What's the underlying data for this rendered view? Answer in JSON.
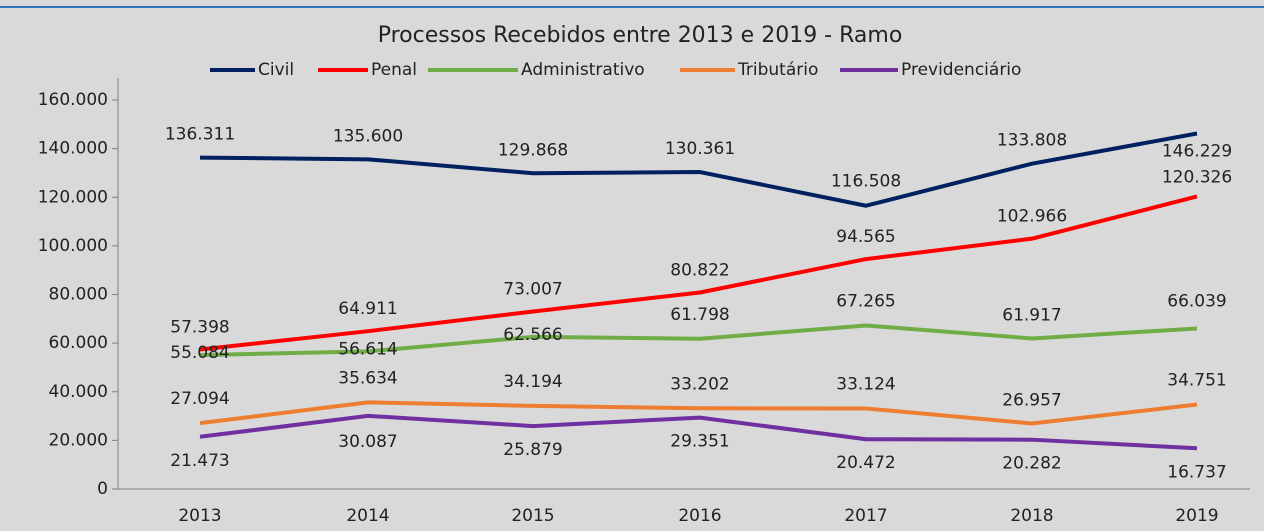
{
  "chart_data": {
    "type": "line",
    "title": "Processos Recebidos entre 2013 e 2019 - Ramo",
    "categories": [
      "2013",
      "2014",
      "2015",
      "2016",
      "2017",
      "2018",
      "2019"
    ],
    "series": [
      {
        "name": "Civil",
        "color": "#002060",
        "values": [
          136311,
          135600,
          129868,
          130361,
          116508,
          133808,
          146229
        ],
        "value_labels": [
          "136.311",
          "135.600",
          "129.868",
          "130.361",
          "116.508",
          "133.808",
          "146.229"
        ]
      },
      {
        "name": "Penal",
        "color": "#ff0000",
        "values": [
          57398,
          64911,
          73007,
          80822,
          94565,
          102966,
          120326
        ],
        "value_labels": [
          "57.398",
          "64.911",
          "73.007",
          "80.822",
          "94.565",
          "102.966",
          "120.326"
        ]
      },
      {
        "name": "Administrativo",
        "color": "#70ad47",
        "values": [
          55084,
          56614,
          62566,
          61798,
          67265,
          61917,
          66039
        ],
        "value_labels": [
          "55.084",
          "56.614",
          "62.566",
          "61.798",
          "67.265",
          "61.917",
          "66.039"
        ]
      },
      {
        "name": "Tributário",
        "color": "#ed7d31",
        "values": [
          27094,
          35634,
          34194,
          33202,
          33124,
          26957,
          34751
        ],
        "value_labels": [
          "27.094",
          "35.634",
          "34.194",
          "33.202",
          "33.124",
          "26.957",
          "34.751"
        ]
      },
      {
        "name": "Previdenciário",
        "color": "#7030a0",
        "values": [
          21473,
          30087,
          25879,
          29351,
          20472,
          20282,
          16737
        ],
        "value_labels": [
          "21.473",
          "30.087",
          "25.879",
          "29.351",
          "20.472",
          "20.282",
          "16.737"
        ]
      }
    ],
    "ylim": [
      0,
      160000
    ],
    "yticks": [
      0,
      {
        "value": 20000,
        "label": "20.000"
      },
      {
        "value": 40000,
        "label": "40.000"
      },
      {
        "value": 60000,
        "label": "60.000"
      },
      {
        "value": 80000,
        "label": "80.000"
      },
      {
        "value": 100000,
        "label": "100.000"
      },
      {
        "value": 120000,
        "label": "120.000"
      },
      {
        "value": 140000,
        "label": "140.000"
      },
      {
        "value": 160000,
        "label": "160.000"
      }
    ],
    "legend": "top"
  }
}
